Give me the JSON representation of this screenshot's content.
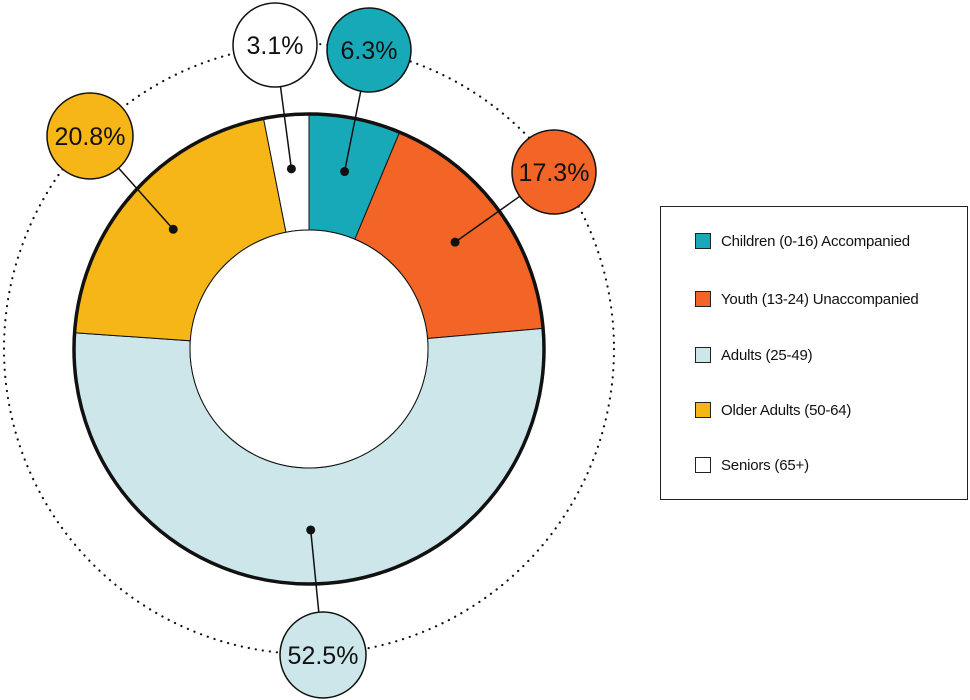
{
  "chart_data": {
    "type": "pie",
    "variant": "donut",
    "categories": [
      "Children (0-16) Accompanied",
      "Youth (13-24) Unaccompanied",
      "Adults (25-49)",
      "Older Adults (50-64)",
      "Seniors (65+)"
    ],
    "values": [
      6.3,
      17.3,
      52.5,
      20.8,
      3.1
    ],
    "value_labels": [
      "6.3%",
      "17.3%",
      "52.5%",
      "20.8%",
      "3.1%"
    ],
    "colors": [
      "#17A9B8",
      "#F26526",
      "#CDE6EA",
      "#F7B617",
      "#FFFFFF"
    ],
    "legend_position": "right",
    "title": ""
  },
  "legend": {
    "items": [
      {
        "label": "Children (0-16) Accompanied",
        "color": "#17A9B8"
      },
      {
        "label": "Youth (13-24) Unaccompanied",
        "color": "#F26526"
      },
      {
        "label": "Adults (25-49)",
        "color": "#CDE6EA"
      },
      {
        "label": "Older Adults (50-64)",
        "color": "#F7B617"
      },
      {
        "label": "Seniors (65+)",
        "color": "#FFFFFF"
      }
    ]
  }
}
